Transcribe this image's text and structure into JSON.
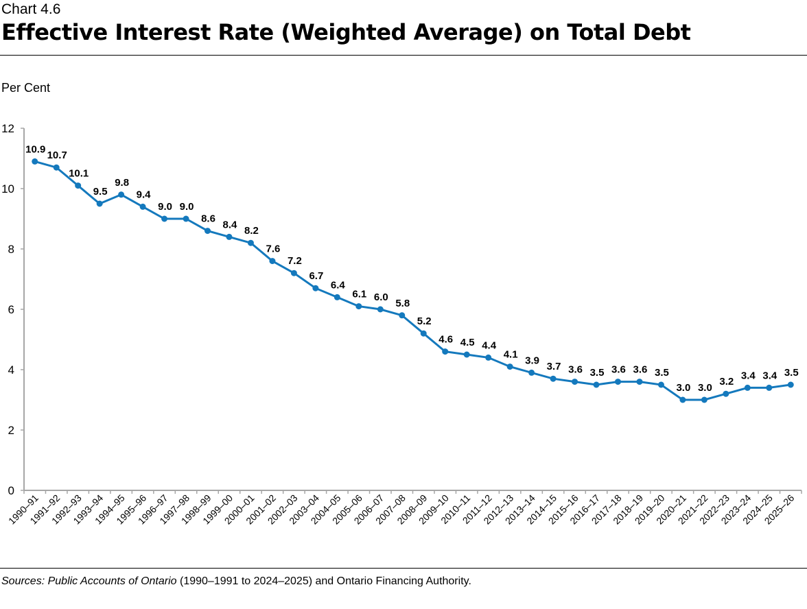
{
  "chart_number": "Chart 4.6",
  "chart_data": {
    "type": "line",
    "title": "Effective Interest Rate (Weighted Average) on Total Debt",
    "ylabel": "Per Cent",
    "xlabel": "",
    "ylim": [
      0,
      12
    ],
    "yticks": [
      0,
      2,
      4,
      6,
      8,
      10,
      12
    ],
    "grid": false,
    "line_color": "#1479bd",
    "categories": [
      "1990–91",
      "1991–92",
      "1992–93",
      "1993–94",
      "1994–95",
      "1995–96",
      "1996–97",
      "1997–98",
      "1998–99",
      "1999–00",
      "2000–01",
      "2001–02",
      "2002–03",
      "2003–04",
      "2004–05",
      "2005–06",
      "2006–07",
      "2007–08",
      "2008–09",
      "2009–10",
      "2010–11",
      "2011–12",
      "2012–13",
      "2013–14",
      "2014–15",
      "2015–16",
      "2016–17",
      "2017–18",
      "2018–19",
      "2019–20",
      "2020–21",
      "2021–22",
      "2022–23",
      "2023–24",
      "2024–25",
      "2025–26"
    ],
    "values": [
      10.9,
      10.7,
      10.1,
      9.5,
      9.8,
      9.4,
      9.0,
      9.0,
      8.6,
      8.4,
      8.2,
      7.6,
      7.2,
      6.7,
      6.4,
      6.1,
      6.0,
      5.8,
      5.2,
      4.6,
      4.5,
      4.4,
      4.1,
      3.9,
      3.7,
      3.6,
      3.5,
      3.6,
      3.6,
      3.5,
      3.0,
      3.0,
      3.2,
      3.4,
      3.4,
      3.5
    ]
  },
  "source": {
    "prefix": "Sources: ",
    "italic": "Public Accounts of Ontario",
    "rest": " (1990–1991 to 2024–2025) and Ontario Financing Authority."
  }
}
